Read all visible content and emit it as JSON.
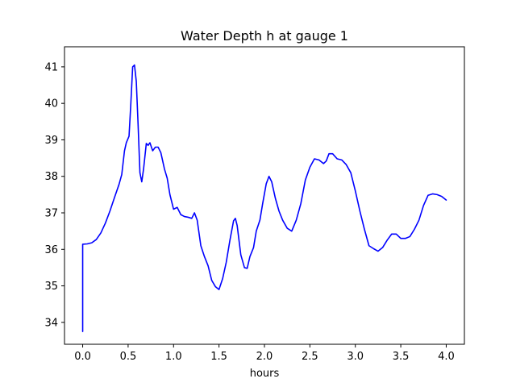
{
  "chart_data": {
    "type": "line",
    "title": "Water Depth h at gauge 1",
    "xlabel": "hours",
    "ylabel": "",
    "xlim": [
      -0.2,
      4.2
    ],
    "ylim": [
      33.4,
      41.55
    ],
    "xticks": [
      0.0,
      0.5,
      1.0,
      1.5,
      2.0,
      2.5,
      3.0,
      3.5,
      4.0
    ],
    "xtick_labels": [
      "0.0",
      "0.5",
      "1.0",
      "1.5",
      "2.0",
      "2.5",
      "3.0",
      "3.5",
      "4.0"
    ],
    "yticks": [
      34,
      35,
      36,
      37,
      38,
      39,
      40,
      41
    ],
    "ytick_labels": [
      "34",
      "35",
      "36",
      "37",
      "38",
      "39",
      "40",
      "41"
    ],
    "grid": false,
    "legend": "none",
    "series": [
      {
        "color": "#0000ff",
        "points": [
          [
            0.0,
            33.75
          ],
          [
            0.0,
            36.14
          ],
          [
            0.05,
            36.15
          ],
          [
            0.1,
            36.18
          ],
          [
            0.15,
            36.27
          ],
          [
            0.2,
            36.45
          ],
          [
            0.25,
            36.72
          ],
          [
            0.3,
            37.05
          ],
          [
            0.35,
            37.42
          ],
          [
            0.4,
            37.78
          ],
          [
            0.43,
            38.05
          ],
          [
            0.46,
            38.7
          ],
          [
            0.48,
            38.92
          ],
          [
            0.51,
            39.1
          ],
          [
            0.53,
            40.0
          ],
          [
            0.55,
            41.0
          ],
          [
            0.57,
            41.05
          ],
          [
            0.59,
            40.6
          ],
          [
            0.61,
            39.4
          ],
          [
            0.63,
            38.1
          ],
          [
            0.65,
            37.85
          ],
          [
            0.67,
            38.2
          ],
          [
            0.7,
            38.9
          ],
          [
            0.72,
            38.85
          ],
          [
            0.74,
            38.92
          ],
          [
            0.77,
            38.7
          ],
          [
            0.8,
            38.8
          ],
          [
            0.83,
            38.8
          ],
          [
            0.86,
            38.65
          ],
          [
            0.9,
            38.2
          ],
          [
            0.93,
            37.95
          ],
          [
            0.96,
            37.5
          ],
          [
            1.0,
            37.1
          ],
          [
            1.04,
            37.15
          ],
          [
            1.08,
            36.95
          ],
          [
            1.12,
            36.9
          ],
          [
            1.16,
            36.88
          ],
          [
            1.2,
            36.85
          ],
          [
            1.23,
            37.0
          ],
          [
            1.26,
            36.8
          ],
          [
            1.3,
            36.1
          ],
          [
            1.34,
            35.8
          ],
          [
            1.38,
            35.55
          ],
          [
            1.42,
            35.15
          ],
          [
            1.46,
            34.98
          ],
          [
            1.5,
            34.9
          ],
          [
            1.54,
            35.2
          ],
          [
            1.58,
            35.65
          ],
          [
            1.62,
            36.25
          ],
          [
            1.66,
            36.78
          ],
          [
            1.68,
            36.85
          ],
          [
            1.7,
            36.65
          ],
          [
            1.74,
            35.85
          ],
          [
            1.78,
            35.5
          ],
          [
            1.81,
            35.48
          ],
          [
            1.84,
            35.8
          ],
          [
            1.88,
            36.05
          ],
          [
            1.91,
            36.5
          ],
          [
            1.95,
            36.8
          ],
          [
            1.98,
            37.25
          ],
          [
            2.02,
            37.8
          ],
          [
            2.05,
            38.0
          ],
          [
            2.08,
            37.85
          ],
          [
            2.12,
            37.4
          ],
          [
            2.16,
            37.05
          ],
          [
            2.2,
            36.8
          ],
          [
            2.25,
            36.58
          ],
          [
            2.3,
            36.5
          ],
          [
            2.35,
            36.8
          ],
          [
            2.4,
            37.25
          ],
          [
            2.45,
            37.9
          ],
          [
            2.5,
            38.25
          ],
          [
            2.55,
            38.48
          ],
          [
            2.6,
            38.45
          ],
          [
            2.65,
            38.35
          ],
          [
            2.68,
            38.42
          ],
          [
            2.71,
            38.62
          ],
          [
            2.75,
            38.62
          ],
          [
            2.8,
            38.48
          ],
          [
            2.85,
            38.45
          ],
          [
            2.9,
            38.32
          ],
          [
            2.95,
            38.1
          ],
          [
            3.0,
            37.6
          ],
          [
            3.05,
            37.05
          ],
          [
            3.1,
            36.55
          ],
          [
            3.15,
            36.1
          ],
          [
            3.2,
            36.02
          ],
          [
            3.25,
            35.95
          ],
          [
            3.3,
            36.05
          ],
          [
            3.35,
            36.25
          ],
          [
            3.4,
            36.42
          ],
          [
            3.45,
            36.42
          ],
          [
            3.5,
            36.3
          ],
          [
            3.55,
            36.3
          ],
          [
            3.6,
            36.35
          ],
          [
            3.65,
            36.55
          ],
          [
            3.7,
            36.8
          ],
          [
            3.75,
            37.2
          ],
          [
            3.8,
            37.48
          ],
          [
            3.85,
            37.52
          ],
          [
            3.9,
            37.5
          ],
          [
            3.95,
            37.45
          ],
          [
            4.0,
            37.35
          ]
        ]
      }
    ]
  }
}
